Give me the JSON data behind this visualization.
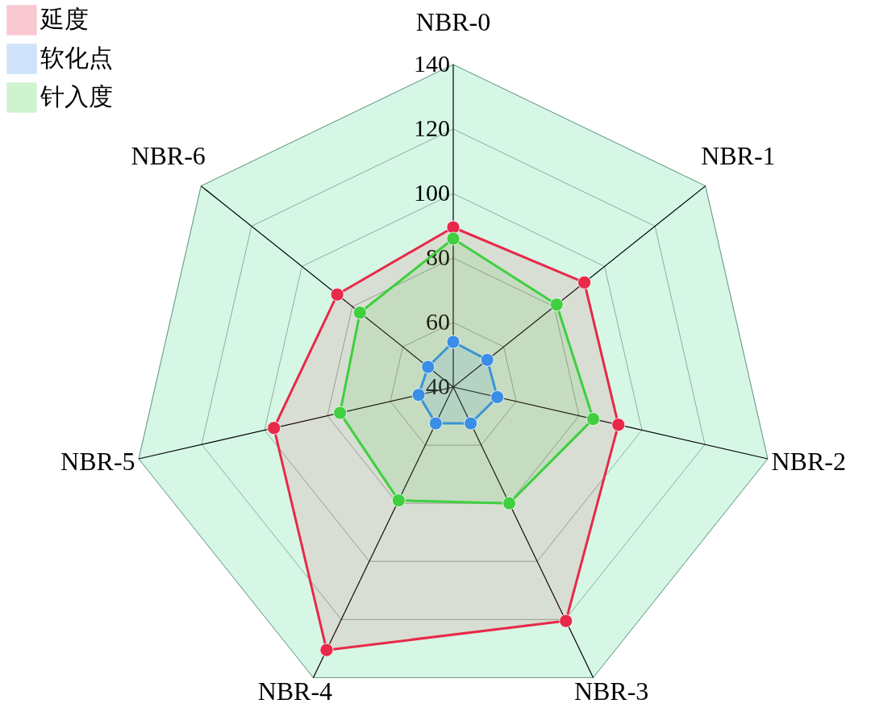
{
  "chart_data": {
    "type": "radar",
    "categories": [
      "NBR-0",
      "NBR-1",
      "NBR-2",
      "NBR-3",
      "NBR-4",
      "NBR-5",
      "NBR-6"
    ],
    "ylim": [
      40,
      140
    ],
    "yticks": [
      40,
      60,
      80,
      100,
      120,
      140
    ],
    "grid": true,
    "legend": "top left",
    "marker": "circle",
    "line_style": "solid",
    "series": [
      {
        "name": "延度",
        "color": "#e8294a",
        "values": [
          89.5,
          92,
          92.5,
          120.5,
          130.5,
          97,
          86
        ]
      },
      {
        "name": "软化点",
        "color": "#3a8ee6",
        "values": [
          54,
          53.5,
          54,
          52.5,
          52.5,
          51,
          50
        ]
      },
      {
        "name": "针入度",
        "color": "#3fcf3f",
        "values": [
          86,
          81,
          84.5,
          80,
          79,
          76,
          77
        ]
      }
    ]
  }
}
